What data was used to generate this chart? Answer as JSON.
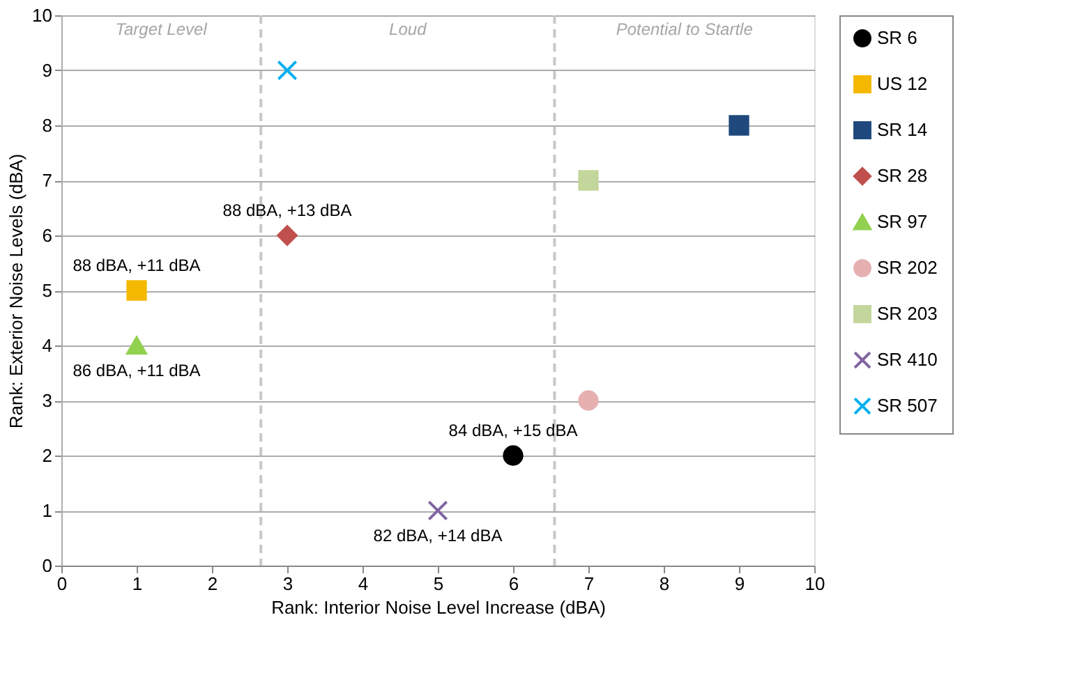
{
  "chart_data": {
    "type": "scatter",
    "xlabel": "Rank: Interior Noise Level Increase (dBA)",
    "ylabel": "Rank: Exterior Noise Levels (dBA)",
    "xlim": [
      0,
      10
    ],
    "ylim": [
      0,
      10
    ],
    "xticks": [
      0,
      1,
      2,
      3,
      4,
      5,
      6,
      7,
      8,
      9,
      10
    ],
    "yticks": [
      0,
      1,
      2,
      3,
      4,
      5,
      6,
      7,
      8,
      9,
      10
    ],
    "grid": "y",
    "legend": "right",
    "series": [
      {
        "name": "SR 6",
        "color": "#000000",
        "marker": "circle",
        "x": [
          6
        ],
        "values": [
          2
        ]
      },
      {
        "name": "US 12",
        "color": "#f5b800",
        "marker": "square",
        "x": [
          1
        ],
        "values": [
          5
        ]
      },
      {
        "name": "SR 14",
        "color": "#1f497d",
        "marker": "square",
        "x": [
          9
        ],
        "values": [
          8
        ]
      },
      {
        "name": "SR 28",
        "color": "#c0504d",
        "marker": "diamond",
        "x": [
          3
        ],
        "values": [
          6
        ]
      },
      {
        "name": "SR 97",
        "color": "#92d050",
        "marker": "triangle",
        "x": [
          1
        ],
        "values": [
          4
        ]
      },
      {
        "name": "SR 202",
        "color": "#e6b0b0",
        "marker": "circle",
        "x": [
          7
        ],
        "values": [
          3
        ]
      },
      {
        "name": "SR 203",
        "color": "#c3d69b",
        "marker": "square",
        "x": [
          7
        ],
        "values": [
          7
        ]
      },
      {
        "name": "SR 410",
        "color": "#8064a2",
        "marker": "cross",
        "x": [
          5
        ],
        "values": [
          1
        ]
      },
      {
        "name": "SR 507",
        "color": "#00b0f0",
        "marker": "cross",
        "x": [
          3
        ],
        "values": [
          9
        ]
      }
    ],
    "ref_lines": [
      {
        "axis": "x",
        "value": 2.65,
        "color": "#c8c8c8",
        "line_style": "dashed"
      },
      {
        "axis": "x",
        "value": 6.55,
        "color": "#c8c8c8",
        "line_style": "dashed"
      }
    ],
    "bands": [
      {
        "axis": "x",
        "from": 0,
        "to": 2.65,
        "label": "Target Level",
        "color": "#ffffff"
      },
      {
        "axis": "x",
        "from": 2.65,
        "to": 6.55,
        "label": "Loud",
        "color": "#ffffff"
      },
      {
        "axis": "x",
        "from": 6.55,
        "to": 10,
        "label": "Potential to Startle",
        "color": "#ffffff"
      }
    ],
    "annotations": [
      {
        "text": "88 dBA, +11 dBA",
        "x": 1,
        "y": 5
      },
      {
        "text": "86 dBA, +11 dBA",
        "x": 1,
        "y": 4
      },
      {
        "text": "88 dBA, +13 dBA",
        "x": 3,
        "y": 6
      },
      {
        "text": "84 dBA, +15 dBA",
        "x": 6,
        "y": 2
      },
      {
        "text": "82 dBA, +14 dBA",
        "x": 5,
        "y": 1
      }
    ]
  }
}
